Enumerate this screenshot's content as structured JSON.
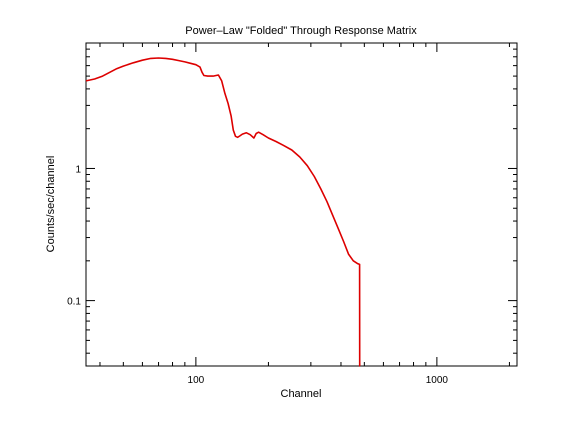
{
  "chart_data": {
    "type": "line",
    "title": "Power–Law \"Folded\" Through Response Matrix",
    "xlabel": "Channel",
    "ylabel": "Counts/sec/channel",
    "xscale": "log",
    "yscale": "log",
    "xlim": [
      35,
      2150
    ],
    "ylim": [
      0.032,
      8.9
    ],
    "x_ticks": [
      {
        "value": 100,
        "label": "100"
      },
      {
        "value": 1000,
        "label": "1000"
      }
    ],
    "y_ticks": [
      {
        "value": 0.1,
        "label": "0.1"
      },
      {
        "value": 1,
        "label": "1"
      }
    ],
    "grid": false,
    "legend": "none",
    "series": [
      {
        "color": "#dd0000",
        "x": [
          35,
          38,
          41,
          44,
          47,
          50,
          55,
          60,
          65,
          70,
          75,
          80,
          85,
          90,
          95,
          100,
          104,
          106,
          108,
          112,
          118,
          124,
          128,
          132,
          136,
          140,
          143,
          146,
          149,
          152,
          156,
          162,
          168,
          174,
          178,
          182,
          190,
          200,
          215,
          230,
          250,
          270,
          290,
          310,
          330,
          350,
          370,
          390,
          410,
          430,
          450,
          470,
          478,
          478.5,
          479
        ],
        "y": [
          4.6,
          4.75,
          5.0,
          5.35,
          5.7,
          5.95,
          6.3,
          6.6,
          6.8,
          6.85,
          6.8,
          6.7,
          6.55,
          6.4,
          6.25,
          6.1,
          5.85,
          5.35,
          5.05,
          5.0,
          5.0,
          5.1,
          4.6,
          3.7,
          3.1,
          2.5,
          1.95,
          1.75,
          1.72,
          1.76,
          1.82,
          1.86,
          1.8,
          1.7,
          1.84,
          1.88,
          1.8,
          1.7,
          1.6,
          1.5,
          1.38,
          1.22,
          1.05,
          0.87,
          0.7,
          0.56,
          0.44,
          0.35,
          0.28,
          0.225,
          0.2,
          0.19,
          0.188,
          0.032,
          0.032
        ]
      }
    ]
  }
}
